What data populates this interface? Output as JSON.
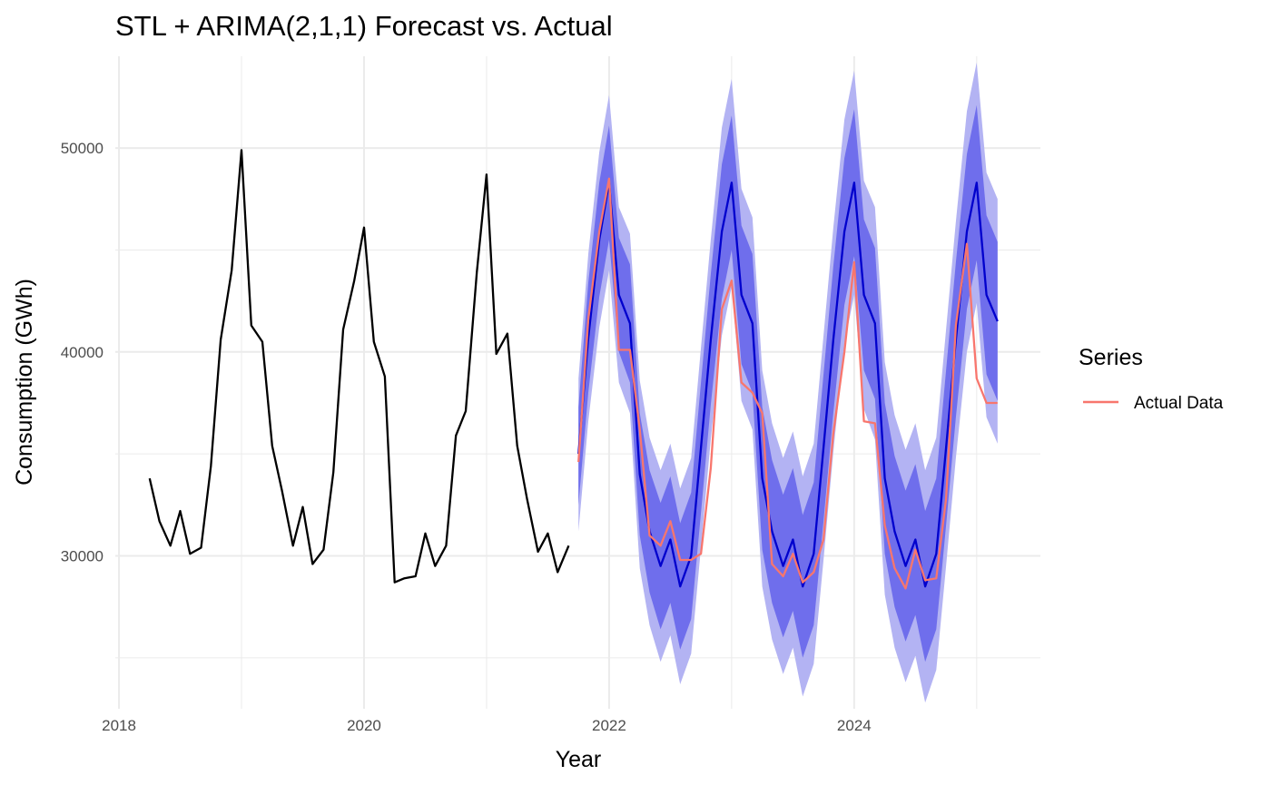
{
  "chart_data": {
    "type": "line",
    "title": "STL + ARIMA(2,1,1) Forecast vs. Actual",
    "xlabel": "Year",
    "ylabel": "Consumption (GWh)",
    "xlim": [
      2017.97,
      2025.52
    ],
    "ylim": [
      22500,
      54500
    ],
    "x_ticks": [
      2018,
      2020,
      2022,
      2024
    ],
    "y_ticks": [
      30000,
      40000,
      50000
    ],
    "grid": true,
    "legend": {
      "title": "Series",
      "position": "right",
      "entries": [
        {
          "label": "Actual Data",
          "color": "#f8766d"
        }
      ]
    },
    "series": [
      {
        "role": "history",
        "color": "#000000",
        "x": [
          2018.25,
          2018.33,
          2018.42,
          2018.5,
          2018.58,
          2018.67,
          2018.75,
          2018.83,
          2018.92,
          2019.0,
          2019.08,
          2019.17,
          2019.25,
          2019.33,
          2019.42,
          2019.5,
          2019.58,
          2019.67,
          2019.75,
          2019.83,
          2019.92,
          2020.0,
          2020.08,
          2020.17,
          2020.25,
          2020.33,
          2020.42,
          2020.5,
          2020.58,
          2020.67,
          2020.75,
          2020.83,
          2020.92,
          2021.0,
          2021.08,
          2021.17,
          2021.25,
          2021.33,
          2021.42,
          2021.5,
          2021.58,
          2021.67
        ],
        "values": [
          33800,
          31700,
          30500,
          32200,
          30100,
          30400,
          34400,
          40600,
          44000,
          49900,
          41300,
          40500,
          35400,
          33200,
          30500,
          32400,
          29600,
          30300,
          34100,
          41100,
          43500,
          46100,
          40500,
          38800,
          28700,
          28900,
          29000,
          31100,
          29500,
          30500,
          35900,
          37100,
          43900,
          48700,
          39900,
          40900,
          35400,
          32800,
          30200,
          31100,
          29200,
          30500
        ]
      },
      {
        "role": "forecast",
        "color": "#0000cd",
        "x": [
          2021.75,
          2021.83,
          2021.92,
          2022.0,
          2022.08,
          2022.17,
          2022.25,
          2022.33,
          2022.42,
          2022.5,
          2022.58,
          2022.67,
          2022.75,
          2022.83,
          2022.92,
          2023.0,
          2023.08,
          2023.17,
          2023.25,
          2023.33,
          2023.42,
          2023.5,
          2023.58,
          2023.67,
          2023.75,
          2023.83,
          2023.92,
          2024.0,
          2024.08,
          2024.17,
          2024.25,
          2024.33,
          2024.42,
          2024.5,
          2024.58,
          2024.67,
          2024.75,
          2024.83,
          2024.92,
          2025.0,
          2025.08,
          2025.17
        ],
        "values": [
          35000,
          40700,
          45500,
          48300,
          42800,
          41400,
          34000,
          31200,
          29500,
          30800,
          28500,
          30000,
          35300,
          40600,
          45900,
          48300,
          42800,
          41400,
          33800,
          31200,
          29500,
          30800,
          28500,
          30100,
          35300,
          40600,
          45900,
          48300,
          42800,
          41400,
          33800,
          31200,
          29500,
          30800,
          28500,
          30100,
          35300,
          40600,
          45900,
          48300,
          42800,
          41500
        ],
        "band80": [
          [
            32500,
            37300
          ],
          [
            38000,
            43400
          ],
          [
            42700,
            48300
          ],
          [
            45500,
            51100
          ],
          [
            40000,
            45600
          ],
          [
            38500,
            44300
          ],
          [
            31000,
            37000
          ],
          [
            28200,
            34200
          ],
          [
            26400,
            32600
          ],
          [
            27700,
            33900
          ],
          [
            25400,
            31600
          ],
          [
            26900,
            33100
          ],
          [
            32100,
            38500
          ],
          [
            37400,
            43800
          ],
          [
            42600,
            49200
          ],
          [
            45000,
            51600
          ],
          [
            39400,
            46200
          ],
          [
            38000,
            44800
          ],
          [
            30300,
            37300
          ],
          [
            27700,
            34700
          ],
          [
            26000,
            33000
          ],
          [
            27300,
            34300
          ],
          [
            25000,
            32000
          ],
          [
            26600,
            33600
          ],
          [
            31700,
            38900
          ],
          [
            37000,
            44200
          ],
          [
            42300,
            49500
          ],
          [
            44700,
            51900
          ],
          [
            39100,
            46500
          ],
          [
            37700,
            45100
          ],
          [
            30100,
            37500
          ],
          [
            27500,
            34900
          ],
          [
            25800,
            33200
          ],
          [
            27100,
            34500
          ],
          [
            24800,
            32200
          ],
          [
            26400,
            33800
          ],
          [
            31500,
            39100
          ],
          [
            36800,
            44400
          ],
          [
            42100,
            49700
          ],
          [
            44500,
            52100
          ],
          [
            38900,
            46700
          ],
          [
            37600,
            45400
          ]
        ],
        "band95": [
          [
            31200,
            38700
          ],
          [
            36600,
            44800
          ],
          [
            41200,
            49800
          ],
          [
            44000,
            52600
          ],
          [
            38500,
            47100
          ],
          [
            37000,
            45800
          ],
          [
            29400,
            38600
          ],
          [
            26600,
            35800
          ],
          [
            24800,
            34200
          ],
          [
            26100,
            35500
          ],
          [
            23700,
            33300
          ],
          [
            25200,
            34800
          ],
          [
            30400,
            40200
          ],
          [
            35700,
            45500
          ],
          [
            40800,
            51000
          ],
          [
            43200,
            53400
          ],
          [
            37600,
            48000
          ],
          [
            36200,
            46600
          ],
          [
            28500,
            39100
          ],
          [
            25900,
            36500
          ],
          [
            24200,
            34800
          ],
          [
            25500,
            36100
          ],
          [
            23100,
            33900
          ],
          [
            24700,
            35500
          ],
          [
            29800,
            40800
          ],
          [
            35100,
            46100
          ],
          [
            40400,
            51400
          ],
          [
            42800,
            53800
          ],
          [
            37200,
            48400
          ],
          [
            35700,
            47100
          ],
          [
            28100,
            39500
          ],
          [
            25500,
            36900
          ],
          [
            23800,
            35200
          ],
          [
            25100,
            36500
          ],
          [
            22800,
            34200
          ],
          [
            24400,
            35800
          ],
          [
            29500,
            41100
          ],
          [
            34800,
            46400
          ],
          [
            40000,
            51800
          ],
          [
            42400,
            54200
          ],
          [
            36800,
            48800
          ],
          [
            35500,
            47500
          ]
        ]
      },
      {
        "role": "actual",
        "name": "Actual Data",
        "color": "#f8766d",
        "x": [
          2021.75,
          2021.83,
          2021.92,
          2022.0,
          2022.08,
          2022.17,
          2022.25,
          2022.33,
          2022.42,
          2022.5,
          2022.58,
          2022.67,
          2022.75,
          2022.83,
          2022.92,
          2023.0,
          2023.08,
          2023.17,
          2023.25,
          2023.33,
          2023.42,
          2023.5,
          2023.58,
          2023.67,
          2023.75,
          2023.83,
          2023.92,
          2024.0,
          2024.08,
          2024.17,
          2024.25,
          2024.33,
          2024.42,
          2024.5,
          2024.58,
          2024.67,
          2024.75,
          2024.83,
          2024.92,
          2025.0,
          2025.08,
          2025.17
        ],
        "values": [
          34600,
          41600,
          45900,
          48500,
          40100,
          40100,
          36200,
          31000,
          30500,
          31700,
          29800,
          29800,
          30100,
          34300,
          42100,
          43500,
          38500,
          38000,
          37000,
          29600,
          29000,
          30100,
          28700,
          29200,
          30800,
          36000,
          40000,
          44400,
          36600,
          36500,
          31500,
          29400,
          28400,
          30300,
          28800,
          28900,
          32800,
          41300,
          45300,
          38700,
          37500,
          37500
        ]
      }
    ]
  }
}
